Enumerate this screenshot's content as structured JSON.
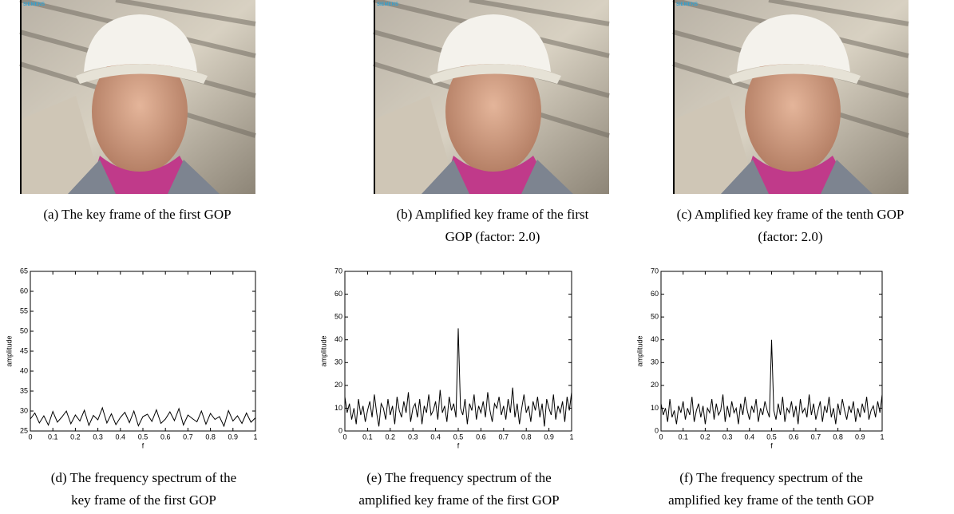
{
  "photos": [
    {
      "watermark": "SIEMENS",
      "caption": [
        "(a) The key frame of the first GOP"
      ]
    },
    {
      "watermark": "SIEMENS",
      "caption": [
        "(b) Amplified key frame of the first",
        "GOP (factor: 2.0)"
      ]
    },
    {
      "watermark": "SIEMENS",
      "caption": [
        "(c) Amplified key frame of the tenth GOP",
        "(factor: 2.0)"
      ]
    }
  ],
  "chart_data": [
    {
      "type": "line",
      "xlabel": "f",
      "ylabel": "amplitude",
      "color": "#000000",
      "caption": [
        "(d) The frequency spectrum of the",
        "key frame of the first GOP"
      ],
      "xlim": [
        0,
        1
      ],
      "ylim": [
        25,
        65
      ],
      "xticks": [
        0,
        0.1,
        0.2,
        0.3,
        0.4,
        0.5,
        0.6,
        0.7,
        0.8,
        0.9,
        1
      ],
      "yticks": [
        25,
        30,
        35,
        40,
        45,
        50,
        55,
        60,
        65
      ],
      "x": [
        0,
        0.02,
        0.04,
        0.06,
        0.08,
        0.1,
        0.12,
        0.14,
        0.16,
        0.18,
        0.2,
        0.22,
        0.24,
        0.26,
        0.28,
        0.3,
        0.32,
        0.34,
        0.36,
        0.38,
        0.4,
        0.42,
        0.44,
        0.46,
        0.48,
        0.5,
        0.52,
        0.54,
        0.56,
        0.58,
        0.6,
        0.62,
        0.64,
        0.66,
        0.68,
        0.7,
        0.72,
        0.74,
        0.76,
        0.78,
        0.8,
        0.82,
        0.84,
        0.86,
        0.88,
        0.9,
        0.92,
        0.94,
        0.96,
        0.98,
        1
      ],
      "values": [
        28,
        29.5,
        27,
        28.8,
        26.5,
        29.9,
        27.2,
        28.5,
        30,
        26.8,
        29,
        27.5,
        30.2,
        26.4,
        28.9,
        27.8,
        30.8,
        27,
        29.3,
        26.6,
        28.4,
        29.7,
        27.1,
        30,
        26.3,
        28.6,
        29.2,
        27.4,
        30.3,
        26.9,
        28,
        29.8,
        27.6,
        30.6,
        26.5,
        29,
        28.1,
        27.3,
        30,
        26.7,
        29.4,
        27.9,
        28.6,
        26.2,
        30.1,
        27.5,
        28.8,
        26.9,
        29.5,
        27.2,
        28.3
      ]
    },
    {
      "type": "line",
      "xlabel": "f",
      "ylabel": "amplitude",
      "color": "#000000",
      "caption": [
        "(e) The frequency spectrum of the",
        "amplified key frame of the first GOP"
      ],
      "xlim": [
        0,
        1
      ],
      "ylim": [
        0,
        70
      ],
      "xticks": [
        0,
        0.1,
        0.2,
        0.3,
        0.4,
        0.5,
        0.6,
        0.7,
        0.8,
        0.9,
        1
      ],
      "yticks": [
        0,
        10,
        20,
        30,
        40,
        50,
        60,
        70
      ],
      "x": [
        0,
        0.01,
        0.02,
        0.03,
        0.04,
        0.05,
        0.06,
        0.07,
        0.08,
        0.09,
        0.1,
        0.11,
        0.12,
        0.13,
        0.14,
        0.15,
        0.16,
        0.17,
        0.18,
        0.19,
        0.2,
        0.21,
        0.22,
        0.23,
        0.24,
        0.25,
        0.26,
        0.27,
        0.28,
        0.29,
        0.3,
        0.31,
        0.32,
        0.33,
        0.34,
        0.35,
        0.36,
        0.37,
        0.38,
        0.39,
        0.4,
        0.41,
        0.42,
        0.43,
        0.44,
        0.45,
        0.46,
        0.47,
        0.48,
        0.49,
        0.5,
        0.51,
        0.52,
        0.53,
        0.54,
        0.55,
        0.56,
        0.57,
        0.58,
        0.59,
        0.6,
        0.61,
        0.62,
        0.63,
        0.64,
        0.65,
        0.66,
        0.67,
        0.68,
        0.69,
        0.7,
        0.71,
        0.72,
        0.73,
        0.74,
        0.75,
        0.76,
        0.77,
        0.78,
        0.79,
        0.8,
        0.81,
        0.82,
        0.83,
        0.84,
        0.85,
        0.86,
        0.87,
        0.88,
        0.89,
        0.9,
        0.91,
        0.92,
        0.93,
        0.94,
        0.95,
        0.96,
        0.97,
        0.98,
        0.99,
        1
      ],
      "values": [
        15,
        8,
        12,
        5,
        10,
        3,
        14,
        7,
        11,
        4,
        9,
        13,
        6,
        16,
        8,
        2,
        12,
        10,
        5,
        14,
        7,
        11,
        3,
        15,
        9,
        6,
        13,
        8,
        17,
        4,
        10,
        12,
        6,
        14,
        3,
        11,
        8,
        16,
        7,
        9,
        13,
        5,
        18,
        8,
        11,
        4,
        15,
        9,
        12,
        6,
        45,
        10,
        7,
        14,
        3,
        12,
        9,
        16,
        5,
        11,
        8,
        13,
        6,
        17,
        9,
        4,
        12,
        10,
        15,
        7,
        11,
        5,
        14,
        8,
        19,
        6,
        12,
        3,
        10,
        16,
        8,
        11,
        4,
        13,
        9,
        15,
        6,
        12,
        2,
        14,
        10,
        7,
        16,
        5,
        11,
        8,
        13,
        4,
        15,
        9,
        17
      ]
    },
    {
      "type": "line",
      "xlabel": "f",
      "ylabel": "amplitude",
      "color": "#000000",
      "caption": [
        "(f) The frequency spectrum of the",
        "amplified key frame of the tenth GOP"
      ],
      "xlim": [
        0,
        1
      ],
      "ylim": [
        0,
        70
      ],
      "xticks": [
        0,
        0.1,
        0.2,
        0.3,
        0.4,
        0.5,
        0.6,
        0.7,
        0.8,
        0.9,
        1
      ],
      "yticks": [
        0,
        10,
        20,
        30,
        40,
        50,
        60,
        70
      ],
      "x": [
        0,
        0.01,
        0.02,
        0.03,
        0.04,
        0.05,
        0.06,
        0.07,
        0.08,
        0.09,
        0.1,
        0.11,
        0.12,
        0.13,
        0.14,
        0.15,
        0.16,
        0.17,
        0.18,
        0.19,
        0.2,
        0.21,
        0.22,
        0.23,
        0.24,
        0.25,
        0.26,
        0.27,
        0.28,
        0.29,
        0.3,
        0.31,
        0.32,
        0.33,
        0.34,
        0.35,
        0.36,
        0.37,
        0.38,
        0.39,
        0.4,
        0.41,
        0.42,
        0.43,
        0.44,
        0.45,
        0.46,
        0.47,
        0.48,
        0.49,
        0.5,
        0.51,
        0.52,
        0.53,
        0.54,
        0.55,
        0.56,
        0.57,
        0.58,
        0.59,
        0.6,
        0.61,
        0.62,
        0.63,
        0.64,
        0.65,
        0.66,
        0.67,
        0.68,
        0.69,
        0.7,
        0.71,
        0.72,
        0.73,
        0.74,
        0.75,
        0.76,
        0.77,
        0.78,
        0.79,
        0.8,
        0.81,
        0.82,
        0.83,
        0.84,
        0.85,
        0.86,
        0.87,
        0.88,
        0.89,
        0.9,
        0.91,
        0.92,
        0.93,
        0.94,
        0.95,
        0.96,
        0.97,
        0.98,
        0.99,
        1
      ],
      "values": [
        12,
        7,
        10,
        4,
        14,
        6,
        9,
        3,
        11,
        8,
        13,
        5,
        10,
        7,
        15,
        4,
        9,
        12,
        6,
        11,
        3,
        10,
        8,
        14,
        5,
        12,
        7,
        9,
        16,
        4,
        11,
        6,
        13,
        8,
        10,
        3,
        12,
        7,
        15,
        9,
        5,
        11,
        8,
        14,
        4,
        10,
        7,
        13,
        9,
        6,
        40,
        9,
        5,
        12,
        7,
        15,
        4,
        10,
        8,
        13,
        6,
        11,
        3,
        14,
        8,
        10,
        6,
        16,
        7,
        12,
        5,
        9,
        13,
        4,
        11,
        8,
        15,
        6,
        10,
        3,
        12,
        7,
        14,
        9,
        5,
        11,
        8,
        13,
        4,
        10,
        6,
        12,
        8,
        15,
        5,
        9,
        11,
        6,
        13,
        8,
        16
      ]
    }
  ]
}
